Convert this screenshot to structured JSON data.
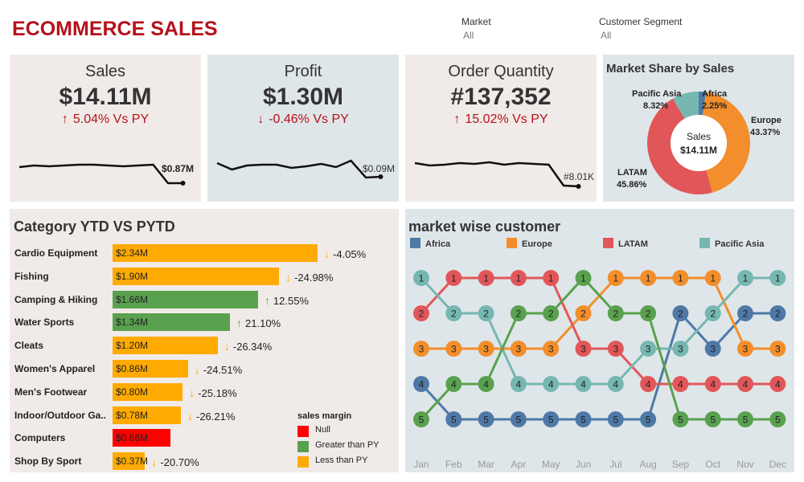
{
  "title": "ECOMMERCE SALES",
  "filters": [
    {
      "label": "Market",
      "value": "All"
    },
    {
      "label": "Customer Segment",
      "value": "All"
    }
  ],
  "kpis": {
    "sales": {
      "title": "Sales",
      "value": "$14.11M",
      "arrow": "↑",
      "delta": "5.04% Vs PY",
      "end_label": "$0.87M",
      "trend": [
        45,
        43,
        44,
        43,
        42,
        42,
        43,
        44,
        43,
        42,
        65,
        65
      ]
    },
    "profit": {
      "title": "Profit",
      "value": "$1.30M",
      "arrow": "↓",
      "delta": "-0.46% Vs PY",
      "end_label": "$0.09M",
      "trend": [
        40,
        48,
        43,
        42,
        42,
        46,
        44,
        41,
        45,
        37,
        58,
        57
      ]
    },
    "orders": {
      "title": "Order Quantity",
      "value": "#137,352",
      "arrow": "↑",
      "delta": "15.02% Vs PY",
      "end_label": "#8.01K",
      "trend": [
        40,
        43,
        42,
        40,
        41,
        39,
        42,
        40,
        41,
        42,
        68,
        69
      ]
    }
  },
  "market_share": {
    "title": "Market Share by Sales",
    "center_label": "Sales",
    "center_value": "$14.11M",
    "slices": [
      {
        "name": "Africa",
        "pct": "2.25%",
        "value": 2.25,
        "color": "#4e79a7"
      },
      {
        "name": "Europe",
        "pct": "43.37%",
        "value": 43.37,
        "color": "#f28e2b"
      },
      {
        "name": "LATAM",
        "pct": "45.86%",
        "value": 45.86,
        "color": "#e15759"
      },
      {
        "name": "Pacific Asia",
        "pct": "8.32%",
        "value": 8.32,
        "color": "#76b7b2"
      }
    ]
  },
  "category": {
    "title": "Category YTD VS PYTD",
    "rows": [
      {
        "name": "Cardio Equipment",
        "label": "$2.34M",
        "value": 2.34,
        "status": "less",
        "arrow": "↓",
        "delta": "-4.05%"
      },
      {
        "name": "Fishing",
        "label": "$1.90M",
        "value": 1.9,
        "status": "less",
        "arrow": "↓",
        "delta": "-24.98%"
      },
      {
        "name": "Camping & Hiking",
        "label": "$1.66M",
        "value": 1.66,
        "status": "greater",
        "arrow": "↑",
        "delta": "12.55%"
      },
      {
        "name": "Water Sports",
        "label": "$1.34M",
        "value": 1.34,
        "status": "greater",
        "arrow": "↑",
        "delta": "21.10%"
      },
      {
        "name": "Cleats",
        "label": "$1.20M",
        "value": 1.2,
        "status": "less",
        "arrow": "↓",
        "delta": "-26.34%"
      },
      {
        "name": "Women's Apparel",
        "label": "$0.86M",
        "value": 0.86,
        "status": "less",
        "arrow": "↓",
        "delta": "-24.51%"
      },
      {
        "name": "Men's Footwear",
        "label": "$0.80M",
        "value": 0.8,
        "status": "less",
        "arrow": "↓",
        "delta": "-25.18%"
      },
      {
        "name": "Indoor/Outdoor Ga..",
        "label": "$0.78M",
        "value": 0.78,
        "status": "less",
        "arrow": "↓",
        "delta": "-26.21%"
      },
      {
        "name": "Computers",
        "label": "$0.66M",
        "value": 0.66,
        "status": "null",
        "arrow": "",
        "delta": ""
      },
      {
        "name": "Shop By Sport",
        "label": "$0.37M",
        "value": 0.37,
        "status": "less",
        "arrow": "↓",
        "delta": "-20.70%"
      }
    ],
    "legend": {
      "title": "sales margin",
      "items": [
        {
          "label": "Null",
          "color": "#ff0000"
        },
        {
          "label": "Greater than PY",
          "color": "#59a14f"
        },
        {
          "label": "Less than PY",
          "color": "#ffaa00"
        }
      ]
    }
  },
  "chart_data": {
    "type": "line",
    "title": "market wise customer",
    "x": [
      "Jan",
      "Feb",
      "Mar",
      "Apr",
      "May",
      "Jun",
      "Jul",
      "Aug",
      "Sep",
      "Oct",
      "Nov",
      "Dec"
    ],
    "ylim": [
      1,
      5
    ],
    "series": [
      {
        "name": "Africa",
        "color": "#4e79a7",
        "values": [
          4,
          5,
          5,
          5,
          5,
          5,
          5,
          5,
          2,
          3,
          2,
          2
        ]
      },
      {
        "name": "Europe",
        "color": "#f28e2b",
        "values": [
          3,
          3,
          3,
          3,
          3,
          2,
          1,
          1,
          1,
          1,
          3,
          3
        ]
      },
      {
        "name": "LATAM",
        "color": "#e15759",
        "values": [
          2,
          1,
          1,
          1,
          1,
          3,
          3,
          4,
          4,
          4,
          4,
          4
        ]
      },
      {
        "name": "Pacific Asia",
        "color": "#76b7b2",
        "values": [
          1,
          2,
          2,
          4,
          4,
          4,
          4,
          3,
          3,
          2,
          1,
          1
        ]
      },
      {
        "name": "",
        "color": "#59a14f",
        "values": [
          5,
          4,
          4,
          2,
          2,
          1,
          2,
          2,
          5,
          5,
          5,
          5
        ]
      }
    ]
  }
}
